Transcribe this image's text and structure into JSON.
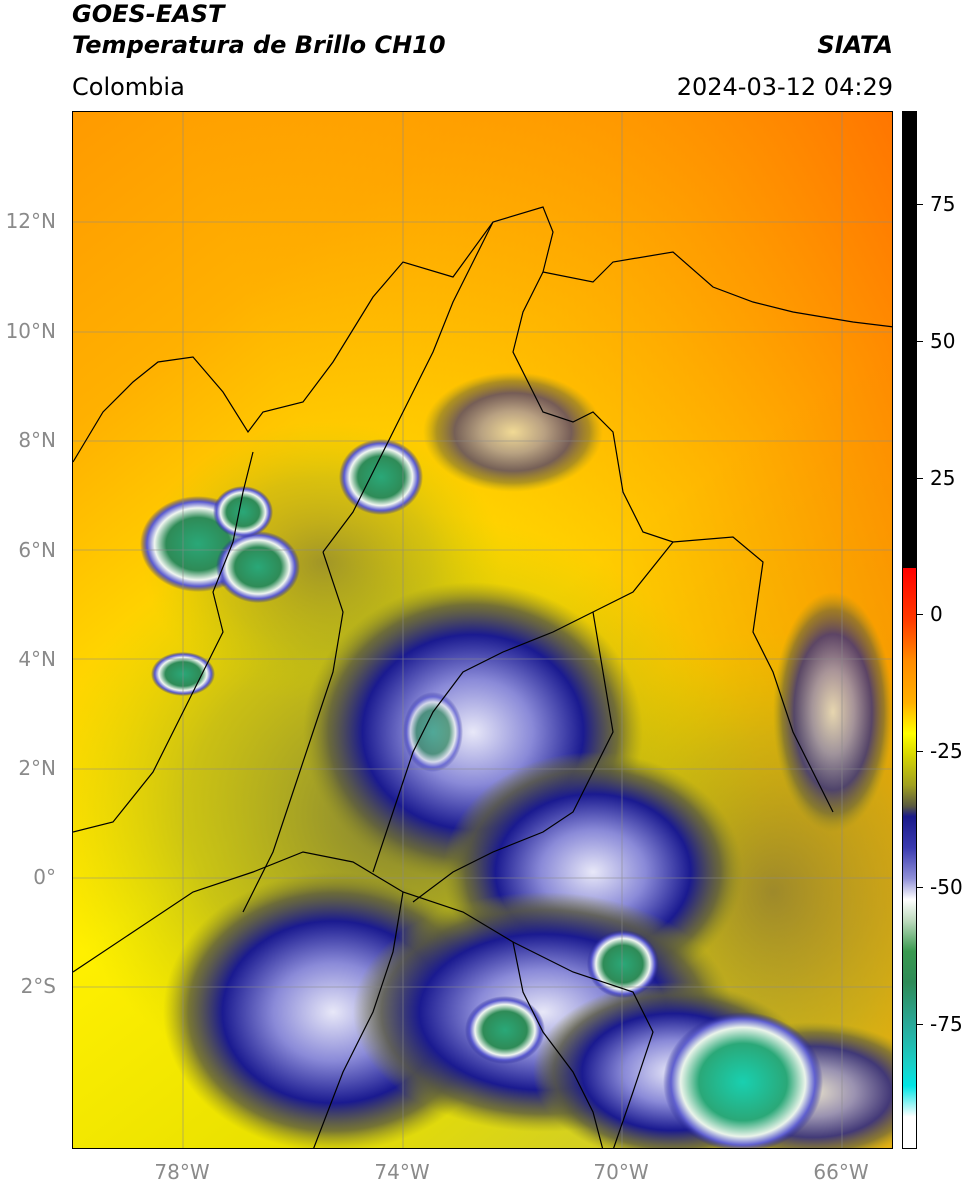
{
  "header": {
    "satellite": "GOES-EAST",
    "product": "Temperatura de Brillo CH10",
    "region": "Colombia",
    "source": "SIATA",
    "datetime": "2024-03-12 04:29"
  },
  "map": {
    "lat_ticks": [
      {
        "label": "12°N",
        "value": 12
      },
      {
        "label": "10°N",
        "value": 10
      },
      {
        "label": "8°N",
        "value": 8
      },
      {
        "label": "6°N",
        "value": 6
      },
      {
        "label": "4°N",
        "value": 4
      },
      {
        "label": "2°N",
        "value": 2
      },
      {
        "label": "0°",
        "value": 0
      },
      {
        "label": "2°S",
        "value": -2
      }
    ],
    "lon_ticks": [
      {
        "label": "78°W",
        "value": -78
      },
      {
        "label": "74°W",
        "value": -74
      },
      {
        "label": "70°W",
        "value": -70
      },
      {
        "label": "66°W",
        "value": -66
      }
    ],
    "extent": {
      "lon_min": -80,
      "lon_max": -65.1,
      "lat_min": -5.0,
      "lat_max": 14.0
    },
    "grid": true
  },
  "colorbar": {
    "ticks": [
      {
        "label": "75",
        "value": 75
      },
      {
        "label": "50",
        "value": 50
      },
      {
        "label": "25",
        "value": 25
      },
      {
        "label": "0",
        "value": 0
      },
      {
        "label": "-25",
        "value": -25
      },
      {
        "label": "-50",
        "value": -50
      },
      {
        "label": "-75",
        "value": -75
      }
    ],
    "range": [
      -95,
      90
    ],
    "colors": {
      "warm_black": "#000000",
      "red": "#ff0000",
      "orange": "#ff8c00",
      "yellow": "#ffff00",
      "olive": "#b4b400",
      "navy": "#00008b",
      "white": "#ffffff",
      "green": "#2e8b57",
      "cyan": "#00e5e5"
    }
  }
}
